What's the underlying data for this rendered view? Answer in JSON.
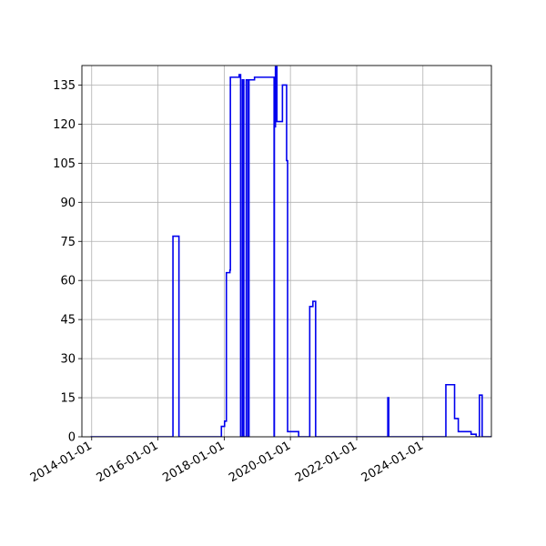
{
  "chart_data": {
    "type": "line",
    "title": "",
    "xlabel": "",
    "ylabel": "",
    "grid": true,
    "x_axis": {
      "scale": "date",
      "range": [
        "2013-09-15",
        "2026-01-25"
      ],
      "ticks": [
        "2014-01-01",
        "2016-01-01",
        "2018-01-01",
        "2020-01-01",
        "2022-01-01",
        "2024-01-01"
      ]
    },
    "y_axis": {
      "range": [
        0,
        142.5
      ],
      "ticks": [
        0,
        15,
        30,
        45,
        60,
        75,
        90,
        105,
        120,
        135
      ]
    },
    "series": [
      {
        "color": "#0000ee",
        "step": "post",
        "points": [
          [
            "2013-12-20",
            0
          ],
          [
            "2016-06-15",
            77
          ],
          [
            "2016-08-20",
            0
          ],
          [
            "2017-12-01",
            4
          ],
          [
            "2018-01-05",
            6
          ],
          [
            "2018-01-25",
            63
          ],
          [
            "2018-03-05",
            64
          ],
          [
            "2018-03-10",
            138
          ],
          [
            "2018-06-15",
            139
          ],
          [
            "2018-07-01",
            0
          ],
          [
            "2018-07-20",
            137
          ],
          [
            "2018-08-05",
            0
          ],
          [
            "2018-09-01",
            137
          ],
          [
            "2018-09-20",
            0
          ],
          [
            "2018-10-01",
            137
          ],
          [
            "2018-12-01",
            138
          ],
          [
            "2019-07-05",
            0
          ],
          [
            "2019-07-08",
            119
          ],
          [
            "2019-07-20",
            142
          ],
          [
            "2019-08-05",
            121
          ],
          [
            "2019-10-05",
            135
          ],
          [
            "2019-11-20",
            106
          ],
          [
            "2019-12-01",
            2
          ],
          [
            "2020-04-01",
            0
          ],
          [
            "2020-08-01",
            50
          ],
          [
            "2020-09-05",
            52
          ],
          [
            "2020-10-05",
            0
          ],
          [
            "2022-08-10",
            0
          ],
          [
            "2022-12-10",
            15
          ],
          [
            "2022-12-20",
            0
          ],
          [
            "2024-09-10",
            20
          ],
          [
            "2024-12-15",
            7
          ],
          [
            "2025-01-25",
            2
          ],
          [
            "2025-04-10",
            2
          ],
          [
            "2025-05-20",
            2
          ],
          [
            "2025-06-15",
            1
          ],
          [
            "2025-08-10",
            0
          ],
          [
            "2025-09-15",
            16
          ],
          [
            "2025-10-15",
            0
          ],
          [
            "2026-01-25",
            0
          ]
        ]
      }
    ]
  }
}
